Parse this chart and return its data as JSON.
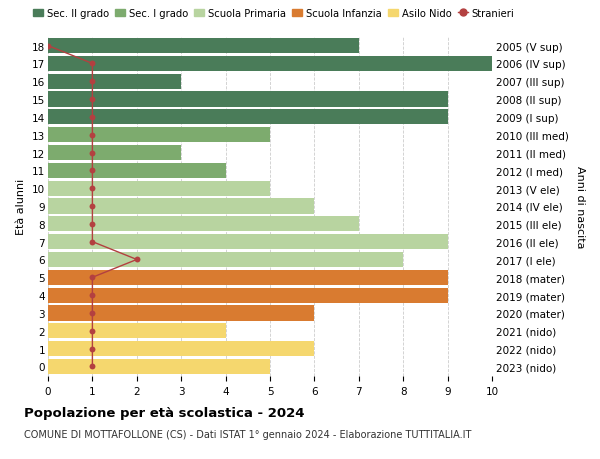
{
  "ages": [
    18,
    17,
    16,
    15,
    14,
    13,
    12,
    11,
    10,
    9,
    8,
    7,
    6,
    5,
    4,
    3,
    2,
    1,
    0
  ],
  "right_labels": [
    "2005 (V sup)",
    "2006 (IV sup)",
    "2007 (III sup)",
    "2008 (II sup)",
    "2009 (I sup)",
    "2010 (III med)",
    "2011 (II med)",
    "2012 (I med)",
    "2013 (V ele)",
    "2014 (IV ele)",
    "2015 (III ele)",
    "2016 (II ele)",
    "2017 (I ele)",
    "2018 (mater)",
    "2019 (mater)",
    "2020 (mater)",
    "2021 (nido)",
    "2022 (nido)",
    "2023 (nido)"
  ],
  "bar_values": [
    7,
    10,
    3,
    9,
    9,
    5,
    3,
    4,
    5,
    6,
    7,
    9,
    8,
    9,
    9,
    6,
    4,
    6,
    5
  ],
  "stranieri_values": [
    0,
    1,
    1,
    1,
    1,
    1,
    1,
    1,
    1,
    1,
    1,
    1,
    2,
    1,
    1,
    1,
    1,
    1,
    1
  ],
  "bar_colors": [
    "#4a7c59",
    "#4a7c59",
    "#4a7c59",
    "#4a7c59",
    "#4a7c59",
    "#7dab6e",
    "#7dab6e",
    "#7dab6e",
    "#b8d4a0",
    "#b8d4a0",
    "#b8d4a0",
    "#b8d4a0",
    "#b8d4a0",
    "#d97b30",
    "#d97b30",
    "#d97b30",
    "#f5d76e",
    "#f5d76e",
    "#f5d76e"
  ],
  "legend_labels": [
    "Sec. II grado",
    "Sec. I grado",
    "Scuola Primaria",
    "Scuola Infanzia",
    "Asilo Nido",
    "Stranieri"
  ],
  "legend_colors": [
    "#4a7c59",
    "#7dab6e",
    "#b8d4a0",
    "#d97b30",
    "#f5d76e",
    "#c0392b"
  ],
  "stranieri_color": "#b34040",
  "title_bold": "Popolazione per età scolastica - 2024",
  "subtitle": "COMUNE DI MOTTAFOLLONE (CS) - Dati ISTAT 1° gennaio 2024 - Elaborazione TUTTITALIA.IT",
  "ylabel_left": "Età alunni",
  "ylabel_right": "Anni di nascita",
  "xlim": [
    0,
    10
  ],
  "xticks": [
    0,
    1,
    2,
    3,
    4,
    5,
    6,
    7,
    8,
    9,
    10
  ],
  "bar_height": 0.85,
  "grid_color": "#cccccc",
  "bg_color": "#ffffff"
}
